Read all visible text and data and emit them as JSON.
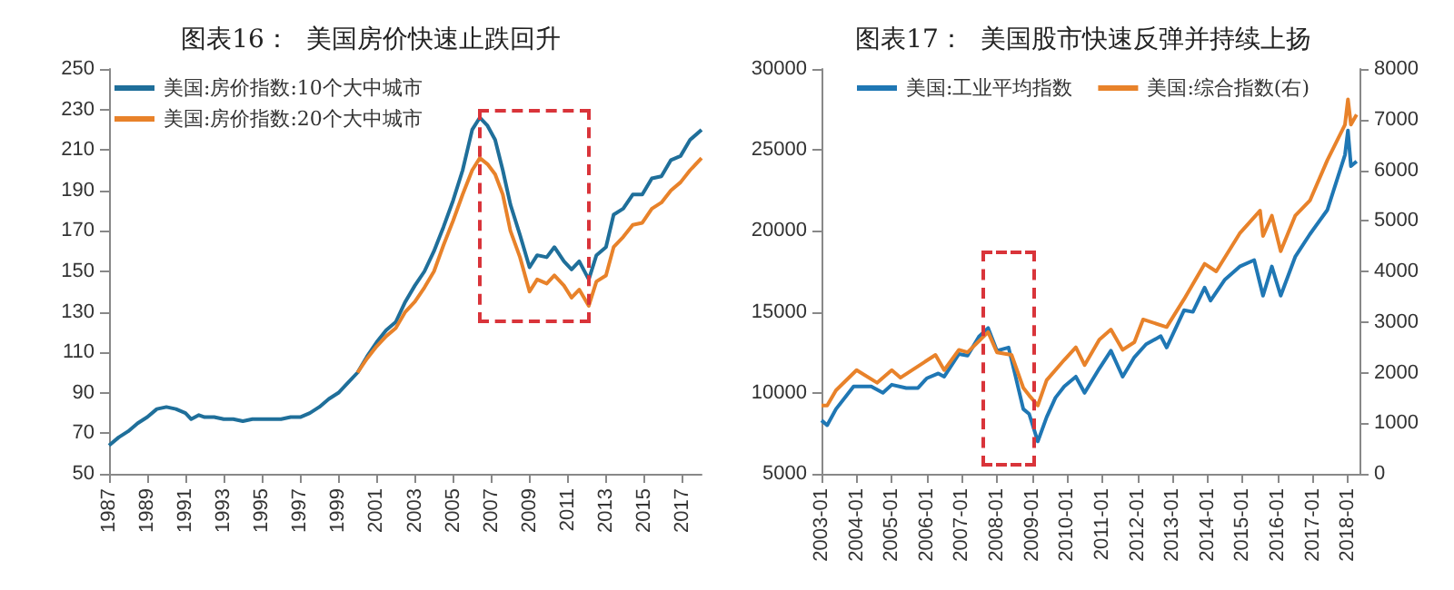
{
  "chart_data": [
    {
      "type": "line",
      "title": "图表16：  美国房价快速止跌回升",
      "legend": "top left",
      "grid": false,
      "marker": "none",
      "xlim": [
        1987,
        2018
      ],
      "xticks": [
        1987,
        1989,
        1991,
        1993,
        1995,
        1997,
        1999,
        2001,
        2003,
        2005,
        2007,
        2009,
        2011,
        2013,
        2015,
        2017
      ],
      "ylim": [
        50,
        250
      ],
      "yticks": [
        50,
        70,
        90,
        110,
        130,
        150,
        170,
        190,
        210,
        230,
        250
      ],
      "series": [
        {
          "name": "美国:房价指数:10个大中城市",
          "color": "#1f6f9a",
          "x": [
            1987,
            1987.5,
            1988,
            1988.5,
            1989,
            1989.5,
            1990,
            1990.5,
            1991,
            1991.3,
            1991.7,
            1992,
            1992.5,
            1993,
            1993.5,
            1994,
            1994.5,
            1995,
            1995.5,
            1996,
            1996.5,
            1997,
            1997.5,
            1998,
            1998.5,
            1999,
            1999.5,
            2000,
            2000.5,
            2001,
            2001.5,
            2002,
            2002.5,
            2003,
            2003.5,
            2004,
            2004.5,
            2005,
            2005.5,
            2006,
            2006.4,
            2006.8,
            2007.2,
            2007.6,
            2008,
            2008.5,
            2009,
            2009.4,
            2009.9,
            2010.3,
            2010.8,
            2011.2,
            2011.6,
            2012.1,
            2012.5,
            2013,
            2013.4,
            2013.9,
            2014.4,
            2014.9,
            2015.4,
            2015.9,
            2016.4,
            2016.9,
            2017.4,
            2018
          ],
          "values": [
            64,
            68,
            71,
            75,
            78,
            82,
            83,
            82,
            80,
            77,
            79,
            78,
            78,
            77,
            77,
            76,
            77,
            77,
            77,
            77,
            78,
            78,
            80,
            83,
            87,
            90,
            95,
            100,
            108,
            115,
            121,
            125,
            135,
            143,
            150,
            160,
            172,
            185,
            200,
            220,
            226,
            222,
            215,
            200,
            183,
            168,
            152,
            158,
            157,
            162,
            155,
            151,
            155,
            146,
            158,
            162,
            178,
            181,
            188,
            188,
            196,
            197,
            205,
            207,
            215,
            220
          ]
        },
        {
          "name": "美国:房价指数:20个大中城市",
          "color": "#e8822a",
          "x": [
            2000,
            2000.5,
            2001,
            2001.5,
            2002,
            2002.5,
            2003,
            2003.5,
            2004,
            2004.5,
            2005,
            2005.5,
            2006,
            2006.4,
            2006.8,
            2007.2,
            2007.6,
            2008,
            2008.5,
            2009,
            2009.4,
            2009.9,
            2010.3,
            2010.8,
            2011.2,
            2011.6,
            2012.1,
            2012.5,
            2013,
            2013.4,
            2013.9,
            2014.4,
            2014.9,
            2015.4,
            2015.9,
            2016.4,
            2016.9,
            2017.4,
            2018
          ],
          "values": [
            100,
            107,
            113,
            118,
            122,
            130,
            135,
            142,
            150,
            163,
            175,
            188,
            200,
            206,
            203,
            198,
            188,
            170,
            157,
            140,
            146,
            144,
            148,
            143,
            137,
            141,
            133,
            145,
            148,
            162,
            167,
            173,
            174,
            181,
            184,
            190,
            194,
            200,
            206
          ]
        }
      ]
    },
    {
      "type": "line",
      "title": "图表17：  美国股市快速反弹并持续上扬",
      "legend": "top",
      "grid": false,
      "marker": "none",
      "xlim": [
        "2003-01",
        "2018-05"
      ],
      "xticks": [
        "2003-01",
        "2004-01",
        "2005-01",
        "2006-01",
        "2007-01",
        "2008-01",
        "2009-01",
        "2010-01",
        "2011-01",
        "2012-01",
        "2013-01",
        "2014-01",
        "2015-01",
        "2016-01",
        "2017-01",
        "2018-01"
      ],
      "ylim": [
        5000,
        30000
      ],
      "yticks": [
        5000,
        10000,
        15000,
        20000,
        25000,
        30000
      ],
      "y2lim": [
        0,
        8000
      ],
      "y2ticks": [
        0,
        1000,
        2000,
        3000,
        4000,
        5000,
        6000,
        7000,
        8000
      ],
      "series": [
        {
          "name": "美国:工业平均指数",
          "color": "#1f77b4",
          "x": [
            "2003-01",
            "2003-03",
            "2003-06",
            "2003-12",
            "2004-03",
            "2004-06",
            "2004-10",
            "2005-01",
            "2005-06",
            "2005-10",
            "2006-01",
            "2006-05",
            "2006-07",
            "2006-12",
            "2007-03",
            "2007-07",
            "2007-10",
            "2008-01",
            "2008-05",
            "2008-07",
            "2008-10",
            "2008-12",
            "2009-03",
            "2009-06",
            "2009-09",
            "2009-12",
            "2010-04",
            "2010-07",
            "2010-12",
            "2011-04",
            "2011-08",
            "2011-12",
            "2012-04",
            "2012-09",
            "2012-11",
            "2013-05",
            "2013-08",
            "2013-12",
            "2014-02",
            "2014-07",
            "2014-12",
            "2015-05",
            "2015-08",
            "2015-11",
            "2016-02",
            "2016-07",
            "2016-12",
            "2017-06",
            "2017-12",
            "2018-01",
            "2018-02",
            "2018-04"
          ],
          "values": [
            8300,
            8000,
            9000,
            10400,
            10400,
            10400,
            10000,
            10500,
            10300,
            10300,
            10900,
            11200,
            11000,
            12400,
            12300,
            13500,
            14000,
            12600,
            12800,
            11300,
            9000,
            8700,
            7000,
            8500,
            9700,
            10400,
            11000,
            10000,
            11500,
            12600,
            11000,
            12200,
            13000,
            13500,
            12800,
            15100,
            15000,
            16500,
            15700,
            17000,
            17800,
            18200,
            16000,
            17800,
            16000,
            18400,
            19800,
            21300,
            24700,
            26200,
            24000,
            24300
          ]
        },
        {
          "name": "美国:综合指数(右)",
          "color": "#e8822a",
          "axis": "y2",
          "x": [
            "2003-01",
            "2003-03",
            "2003-06",
            "2004-01",
            "2004-08",
            "2005-01",
            "2005-04",
            "2005-12",
            "2006-04",
            "2006-07",
            "2006-12",
            "2007-03",
            "2007-10",
            "2008-01",
            "2008-06",
            "2008-10",
            "2008-12",
            "2009-03",
            "2009-06",
            "2009-12",
            "2010-04",
            "2010-07",
            "2010-12",
            "2011-04",
            "2011-08",
            "2011-12",
            "2012-03",
            "2012-11",
            "2013-05",
            "2013-12",
            "2014-04",
            "2014-12",
            "2015-07",
            "2015-08",
            "2015-11",
            "2016-02",
            "2016-07",
            "2016-12",
            "2017-06",
            "2017-12",
            "2018-01",
            "2018-02",
            "2018-04"
          ],
          "values": [
            1350,
            1350,
            1650,
            2050,
            1800,
            2050,
            1900,
            2200,
            2350,
            2050,
            2450,
            2400,
            2800,
            2400,
            2350,
            1700,
            1550,
            1350,
            1850,
            2250,
            2500,
            2150,
            2650,
            2850,
            2450,
            2600,
            3050,
            2900,
            3450,
            4150,
            4000,
            4750,
            5200,
            4700,
            5100,
            4400,
            5100,
            5400,
            6200,
            6900,
            7400,
            6900,
            7100
          ]
        }
      ]
    }
  ]
}
